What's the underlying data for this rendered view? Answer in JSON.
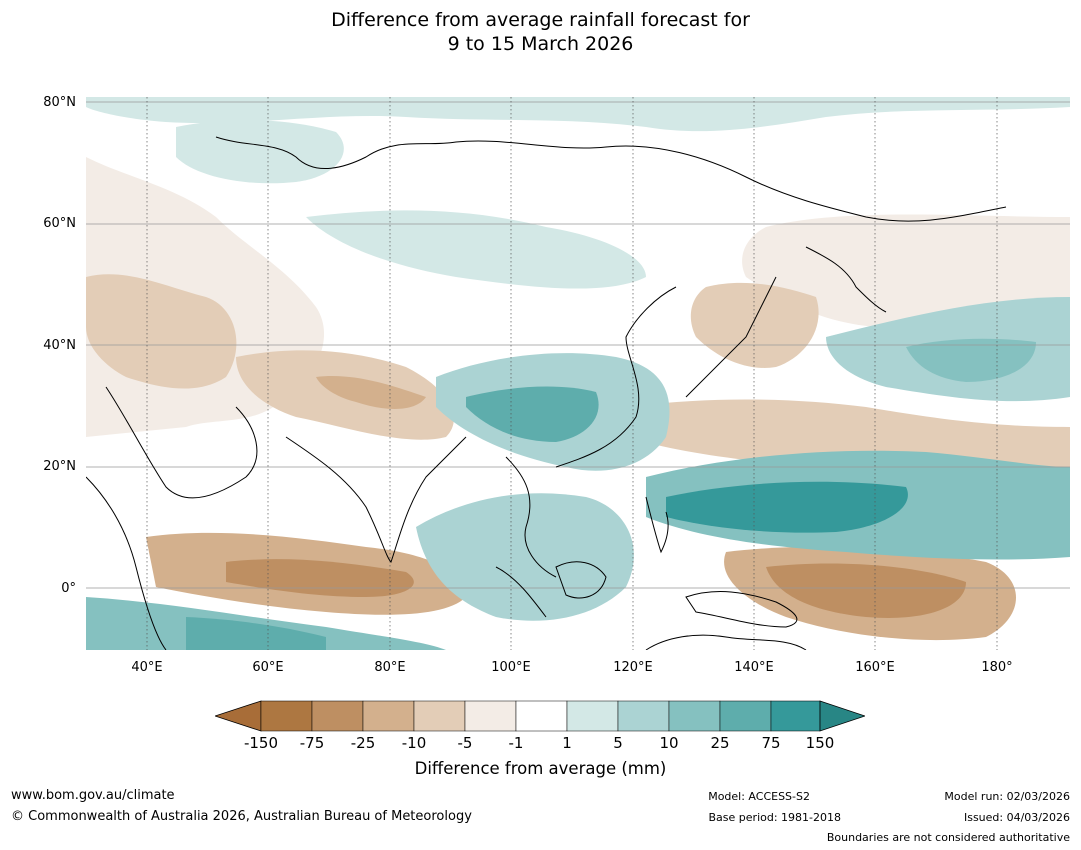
{
  "header": {
    "title_line1": "Difference from average rainfall forecast for",
    "title_line2": "9 to 15 March 2026"
  },
  "map": {
    "lat_labels": [
      "80°N",
      "60°N",
      "40°N",
      "20°N",
      "0°"
    ],
    "lon_labels": [
      "40°E",
      "60°E",
      "80°E",
      "100°E",
      "120°E",
      "140°E",
      "160°E",
      "180°"
    ]
  },
  "legend": {
    "ticks": [
      "-150",
      "-75",
      "-25",
      "-10",
      "-5",
      "-1",
      "1",
      "5",
      "10",
      "25",
      "75",
      "150"
    ],
    "colors": [
      "#a86d38",
      "#ad7741",
      "#be8f62",
      "#d3b08d",
      "#e3cdb7",
      "#f3ece6",
      "#ffffff",
      "#d3e8e6",
      "#abd3d3",
      "#85c1c0",
      "#5eadac",
      "#35999a",
      "#288685"
    ],
    "title": "Difference from average (mm)"
  },
  "footer": {
    "website": "www.bom.gov.au/climate",
    "copyright": "© Commonwealth of Australia 2026, Australian Bureau of Meteorology",
    "model": "Model: ACCESS-S2",
    "base_period": "Base period: 1981-2018",
    "model_run": "Model run: 02/03/2026",
    "issued": "Issued: 04/03/2026",
    "disclaimer": "Boundaries are not considered authoritative"
  }
}
